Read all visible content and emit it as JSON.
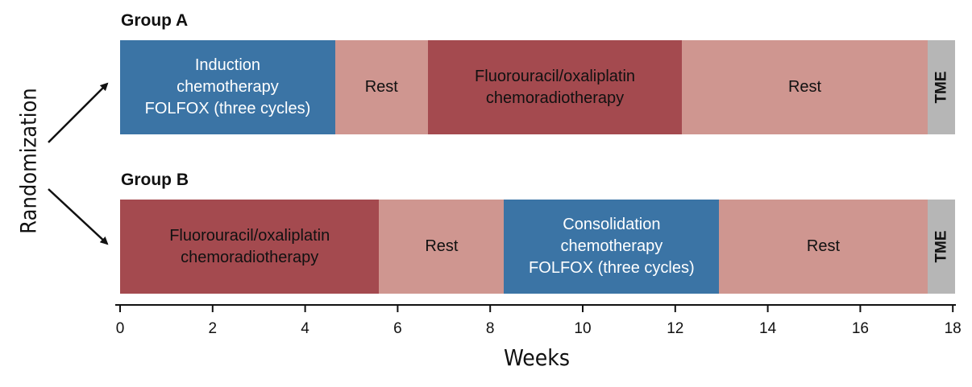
{
  "y_label": "Randomization",
  "x_label": "Weeks",
  "axis": {
    "min": 0,
    "max": 18,
    "ticks": [
      "0",
      "2",
      "4",
      "6",
      "8",
      "10",
      "12",
      "14",
      "16",
      "18"
    ]
  },
  "colors": {
    "chemotherapy": "#3b74a5",
    "chemoradiotherapy": "#a44a4f",
    "rest": "#cf9690",
    "tme": "#b6b6b6"
  },
  "groups": [
    {
      "title": "Group A",
      "segments": [
        {
          "label": "Induction\nchemotherapy\nFOLFOX (three cycles)",
          "start": 0,
          "end": 4.65,
          "kind": "blue"
        },
        {
          "label": "Rest",
          "start": 4.65,
          "end": 6.65,
          "kind": "rest"
        },
        {
          "label": "Fluorouracil/oxaliplatin\nchemoradiotherapy",
          "start": 6.65,
          "end": 12.15,
          "kind": "red"
        },
        {
          "label": "Rest",
          "start": 12.15,
          "end": 17.45,
          "kind": "rest"
        },
        {
          "label": "TME",
          "start": 17.45,
          "end": 18.05,
          "kind": "tme"
        }
      ]
    },
    {
      "title": "Group B",
      "segments": [
        {
          "label": "Fluorouracil/oxaliplatin\nchemoradiotherapy",
          "start": 0,
          "end": 5.6,
          "kind": "red"
        },
        {
          "label": "Rest",
          "start": 5.6,
          "end": 8.3,
          "kind": "rest"
        },
        {
          "label": "Consolidation\nchemotherapy\nFOLFOX (three cycles)",
          "start": 8.3,
          "end": 12.95,
          "kind": "blue"
        },
        {
          "label": "Rest",
          "start": 12.95,
          "end": 17.45,
          "kind": "rest"
        },
        {
          "label": "TME",
          "start": 17.45,
          "end": 18.05,
          "kind": "tme"
        }
      ]
    }
  ]
}
